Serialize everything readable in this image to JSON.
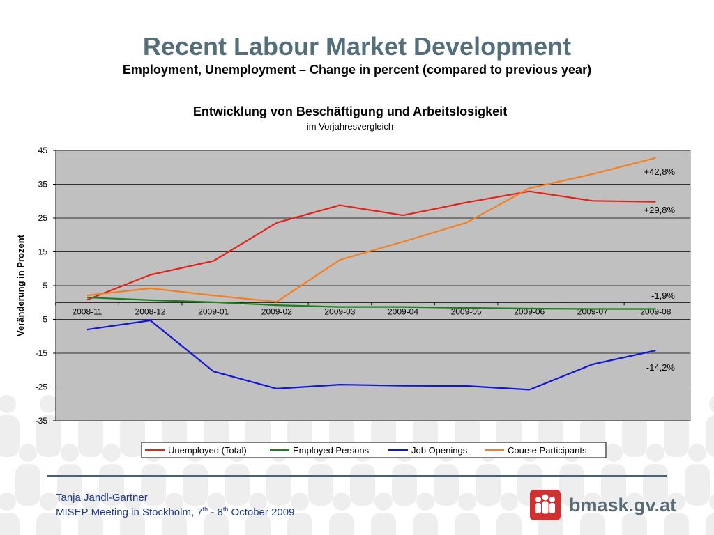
{
  "slide": {
    "title": "Recent Labour Market Development",
    "subtitle": "Employment, Unemployment – Change in percent (compared to previous year)"
  },
  "chart_data": {
    "type": "line",
    "title": "Entwicklung von Beschäftigung und Arbeitslosigkeit",
    "subtitle": "im Vorjahresvergleich",
    "ylabel": "Veränderung in Prozent",
    "xlabel": "",
    "categories": [
      "2008-11",
      "2008-12",
      "2009-01",
      "2009-02",
      "2009-03",
      "2009-04",
      "2009-05",
      "2009-06",
      "2009-07",
      "2009-08"
    ],
    "ylim": [
      -35,
      45
    ],
    "yticks": [
      45,
      35,
      25,
      15,
      5,
      -5,
      -15,
      -25,
      -35
    ],
    "grid": true,
    "legend_position": "bottom",
    "plot_background": "#c0c0c0",
    "series": [
      {
        "name": "Unemployed (Total)",
        "color": "#e32219",
        "values": [
          0.8,
          8.2,
          12.3,
          23.6,
          28.8,
          25.8,
          29.6,
          32.9,
          30.1,
          29.8
        ]
      },
      {
        "name": "Employed Persons",
        "color": "#1e7f1e",
        "values": [
          1.5,
          0.7,
          0.1,
          -0.8,
          -1.3,
          -1.3,
          -1.6,
          -1.8,
          -1.9,
          -1.9
        ]
      },
      {
        "name": "Job Openings",
        "color": "#1414d6",
        "values": [
          -8.0,
          -5.3,
          -20.4,
          -25.5,
          -24.3,
          -24.6,
          -24.7,
          -25.8,
          -18.3,
          -14.2
        ]
      },
      {
        "name": "Course Participants",
        "color": "#f47e20",
        "values": [
          2.1,
          4.2,
          2.1,
          0.2,
          12.6,
          18.0,
          23.6,
          33.8,
          38.0,
          42.8
        ]
      }
    ],
    "annotations": [
      "+42,8%",
      "+29,8%",
      "-1,9%",
      "-14,2%"
    ]
  },
  "footer": {
    "author": "Tanja Jandl-Gartner",
    "meeting_pre": "MISEP Meeting in Stockholm, 7",
    "meeting_sup1": "th",
    "meeting_mid": " - 8",
    "meeting_sup2": "th",
    "meeting_post": " October 2009",
    "logo_text": "bmask.gv.at",
    "logo_icon": "people-group-icon"
  }
}
